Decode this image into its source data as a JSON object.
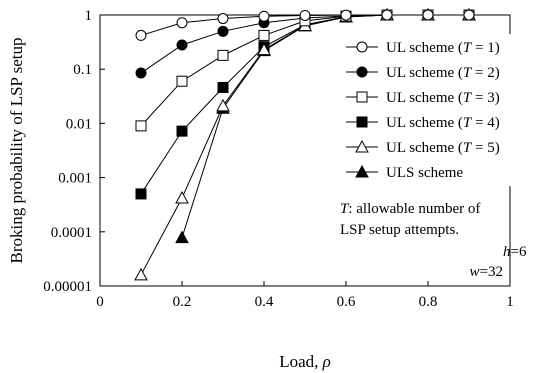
{
  "chart_data": {
    "type": "line",
    "xlabel_text": "Load, ",
    "xlabel_symbol": "ρ",
    "ylabel": "Broking probability of LSP setup",
    "xlim": [
      0,
      1
    ],
    "ylim": [
      1e-05,
      1
    ],
    "y_scale": "log",
    "grid": false,
    "legend_position": "top-right",
    "x_ticks": [
      0,
      0.2,
      0.4,
      0.6,
      0.8,
      1
    ],
    "x_tick_labels": [
      "0",
      "0.2",
      "0.4",
      "0.6",
      "0.8",
      "1"
    ],
    "y_ticks": [
      1,
      0.1,
      0.01,
      0.001,
      0.0001,
      1e-05
    ],
    "y_tick_labels": [
      "1",
      "0.1",
      "0.01",
      "0.001",
      "0.0001",
      "0.00001"
    ],
    "series": [
      {
        "name": "UL scheme (T = 1)",
        "legend_prefix": "UL scheme (",
        "legend_var": "T",
        "legend_suffix": " = 1)",
        "marker": "circle-open",
        "x": [
          0.1,
          0.2,
          0.3,
          0.4,
          0.5,
          0.6,
          0.7,
          0.8,
          0.9
        ],
        "y": [
          0.42,
          0.72,
          0.86,
          0.95,
          0.98,
          0.995,
          1,
          1,
          1
        ]
      },
      {
        "name": "UL scheme (T = 2)",
        "legend_prefix": "UL scheme (",
        "legend_var": "T",
        "legend_suffix": " = 2)",
        "marker": "circle-filled",
        "x": [
          0.1,
          0.2,
          0.3,
          0.4,
          0.5,
          0.6,
          0.7,
          0.8,
          0.9
        ],
        "y": [
          0.085,
          0.28,
          0.5,
          0.72,
          0.88,
          0.96,
          1,
          1,
          1
        ]
      },
      {
        "name": "UL scheme (T = 3)",
        "legend_prefix": "UL scheme (",
        "legend_var": "T",
        "legend_suffix": " = 3)",
        "marker": "square-open",
        "x": [
          0.1,
          0.2,
          0.3,
          0.4,
          0.5,
          0.6,
          0.7,
          0.8,
          0.9
        ],
        "y": [
          0.009,
          0.06,
          0.18,
          0.42,
          0.78,
          0.95,
          1,
          1,
          1
        ]
      },
      {
        "name": "UL scheme (T = 4)",
        "legend_prefix": "UL scheme (",
        "legend_var": "T",
        "legend_suffix": " = 4)",
        "marker": "square-filled",
        "x": [
          0.1,
          0.2,
          0.3,
          0.4,
          0.5,
          0.6,
          0.7,
          0.8,
          0.9
        ],
        "y": [
          0.0005,
          0.0072,
          0.046,
          0.26,
          0.66,
          0.93,
          1,
          1,
          1
        ]
      },
      {
        "name": "UL scheme (T = 5)",
        "legend_prefix": "UL scheme (",
        "legend_var": "T",
        "legend_suffix": " = 5)",
        "marker": "triangle-open",
        "x": [
          0.1,
          0.2,
          0.3,
          0.4,
          0.5,
          0.6,
          0.7,
          0.8,
          0.9
        ],
        "y": [
          1.6e-05,
          0.00042,
          0.021,
          0.23,
          0.64,
          0.93,
          1,
          1,
          1
        ]
      },
      {
        "name": "ULS scheme",
        "legend_prefix": "ULS scheme",
        "legend_var": "",
        "legend_suffix": "",
        "marker": "triangle-filled",
        "x": [
          0.2,
          0.3,
          0.4,
          0.5,
          0.6,
          0.7,
          0.8,
          0.9
        ],
        "y": [
          7.8e-05,
          0.019,
          0.22,
          0.63,
          0.92,
          1,
          1,
          1
        ]
      }
    ],
    "annotation": {
      "line1_var": "T",
      "line1_rest": ": allowable number of",
      "line2": "LSP setup attempts."
    },
    "params": {
      "h_var": "h",
      "h_val": "=6",
      "w_var": "w",
      "w_val": "=32"
    }
  }
}
